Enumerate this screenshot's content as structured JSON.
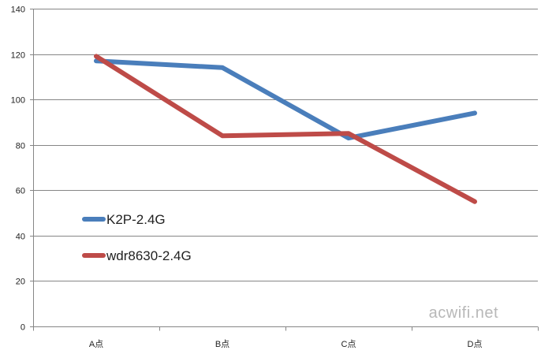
{
  "chart_data": {
    "type": "line",
    "categories": [
      "A点",
      "B点",
      "C点",
      "D点"
    ],
    "series": [
      {
        "name": "K2P-2.4G",
        "values": [
          117,
          114,
          83,
          94
        ],
        "color": "#4a7ebb"
      },
      {
        "name": "wdr8630-2.4G",
        "values": [
          119,
          84,
          85,
          55
        ],
        "color": "#be4b48"
      }
    ],
    "ylim": [
      0,
      140
    ],
    "yticks": [
      0,
      20,
      40,
      60,
      80,
      100,
      120,
      140
    ],
    "grid": true,
    "legend_position": "middle-left"
  },
  "watermark": "acwifi.net",
  "colors": {
    "grid": "#868686",
    "axis": "#868686"
  }
}
